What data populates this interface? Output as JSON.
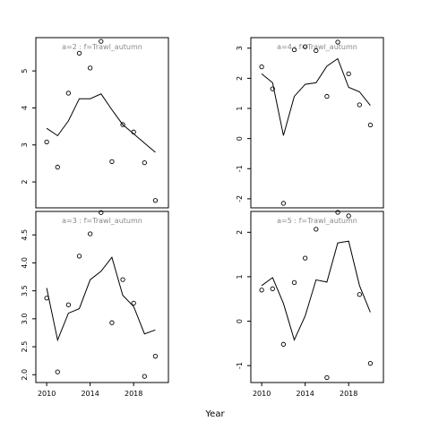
{
  "chart_data": [
    {
      "type": "line",
      "title": "a=2  :  f=Trawl_autumn",
      "xlim": [
        2009.0,
        2021.2
      ],
      "ylim": [
        1.3,
        5.9
      ],
      "yticks": [
        2,
        3,
        4,
        5
      ],
      "xticks": [],
      "x": [
        2010,
        2011,
        2012,
        2013,
        2014,
        2015,
        2016,
        2017,
        2018,
        2019,
        2020
      ],
      "line": [
        3.45,
        3.25,
        3.65,
        4.25,
        4.25,
        4.38,
        3.95,
        3.55,
        3.3,
        3.05,
        2.8
      ],
      "points": [
        3.08,
        2.4,
        4.4,
        5.48,
        5.08,
        5.8,
        2.55,
        3.55,
        3.35,
        2.52,
        1.5
      ]
    },
    {
      "type": "line",
      "title": "a=4  :  f=Trawl_autumn",
      "xlim": [
        2009.0,
        2021.2
      ],
      "ylim": [
        -2.3,
        3.35
      ],
      "yticks": [
        -2,
        -1,
        0,
        1,
        2,
        3
      ],
      "xticks": [],
      "x": [
        2010,
        2011,
        2012,
        2013,
        2014,
        2015,
        2016,
        2017,
        2018,
        2019,
        2020
      ],
      "line": [
        2.15,
        1.85,
        0.1,
        1.4,
        1.8,
        1.85,
        2.4,
        2.65,
        1.7,
        1.55,
        1.1
      ],
      "points": [
        2.38,
        1.65,
        -2.15,
        2.95,
        3.05,
        2.92,
        1.4,
        3.2,
        2.15,
        1.12,
        0.45
      ]
    },
    {
      "type": "line",
      "title": "a=3  :  f=Trawl_autumn",
      "xlim": [
        2009.0,
        2021.2
      ],
      "ylim": [
        1.86,
        4.92
      ],
      "yticks": [
        2.0,
        2.5,
        3.0,
        3.5,
        4.0,
        4.5
      ],
      "ytick_labels": [
        "2.0",
        "2.5",
        "3.0",
        "3.5",
        "4.0",
        "4.5"
      ],
      "xticks": [
        2010,
        2014,
        2018
      ],
      "x": [
        2010,
        2011,
        2012,
        2013,
        2014,
        2015,
        2016,
        2017,
        2018,
        2019,
        2020
      ],
      "line": [
        3.55,
        2.62,
        3.1,
        3.18,
        3.7,
        3.85,
        4.1,
        3.42,
        3.22,
        2.73,
        2.8
      ],
      "points": [
        3.37,
        2.05,
        3.25,
        4.12,
        4.52,
        4.9,
        2.93,
        3.7,
        3.28,
        1.97,
        2.33
      ]
    },
    {
      "type": "line",
      "title": "a=5  :  f=Trawl_autumn",
      "xlim": [
        2009.0,
        2021.2
      ],
      "ylim": [
        -1.38,
        2.47
      ],
      "yticks": [
        -1,
        0,
        1,
        2
      ],
      "xticks": [
        2010,
        2014,
        2018
      ],
      "x": [
        2010,
        2011,
        2012,
        2013,
        2014,
        2015,
        2016,
        2017,
        2018,
        2019,
        2020
      ],
      "line": [
        0.8,
        0.98,
        0.4,
        -0.42,
        0.12,
        0.93,
        0.88,
        1.76,
        1.8,
        0.8,
        0.2
      ],
      "points": [
        0.7,
        0.73,
        -0.52,
        0.87,
        1.42,
        2.07,
        -1.27,
        2.45,
        2.37,
        0.6,
        -0.95
      ]
    }
  ],
  "xlabel": "Year"
}
